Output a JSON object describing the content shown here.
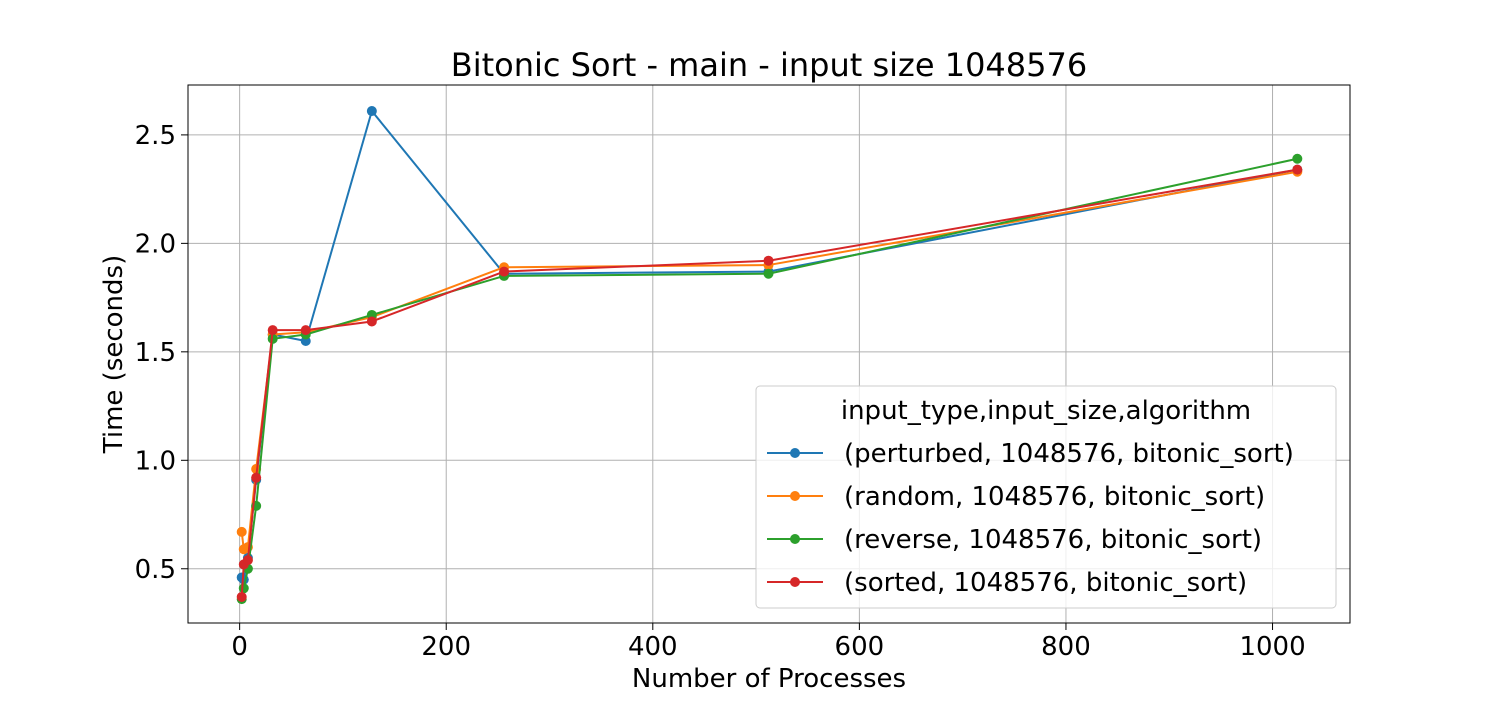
{
  "chart_data": {
    "type": "line",
    "title": "Bitonic Sort - main - input size 1048576",
    "xlabel": "Number of Processes",
    "ylabel": "Time (seconds)",
    "xlim": [
      -50,
      1075
    ],
    "ylim": [
      0.25,
      2.73
    ],
    "xticks": [
      0,
      200,
      400,
      600,
      800,
      1000
    ],
    "yticks": [
      0.5,
      1.0,
      1.5,
      2.0,
      2.5
    ],
    "grid": true,
    "legend": {
      "title": "input_type,input_size,algorithm",
      "placement": "lower-right"
    },
    "x": [
      2,
      4,
      8,
      16,
      32,
      64,
      128,
      256,
      512,
      1024
    ],
    "series": [
      {
        "name": "(perturbed, 1048576, bitonic_sort)",
        "color": "#1f77b4",
        "values": [
          0.46,
          0.45,
          0.55,
          0.91,
          1.58,
          1.55,
          2.61,
          1.86,
          1.87,
          2.34
        ]
      },
      {
        "name": "(random, 1048576, bitonic_sort)",
        "color": "#ff7f0e",
        "values": [
          0.67,
          0.59,
          0.6,
          0.96,
          1.58,
          1.59,
          1.66,
          1.89,
          1.9,
          2.33
        ]
      },
      {
        "name": "(reverse, 1048576, bitonic_sort)",
        "color": "#2ca02c",
        "values": [
          0.36,
          0.41,
          0.5,
          0.79,
          1.56,
          1.58,
          1.67,
          1.85,
          1.86,
          2.39
        ]
      },
      {
        "name": "(sorted, 1048576, bitonic_sort)",
        "color": "#d62728",
        "values": [
          0.37,
          0.52,
          0.54,
          0.92,
          1.6,
          1.6,
          1.64,
          1.87,
          1.92,
          2.34
        ]
      }
    ]
  }
}
